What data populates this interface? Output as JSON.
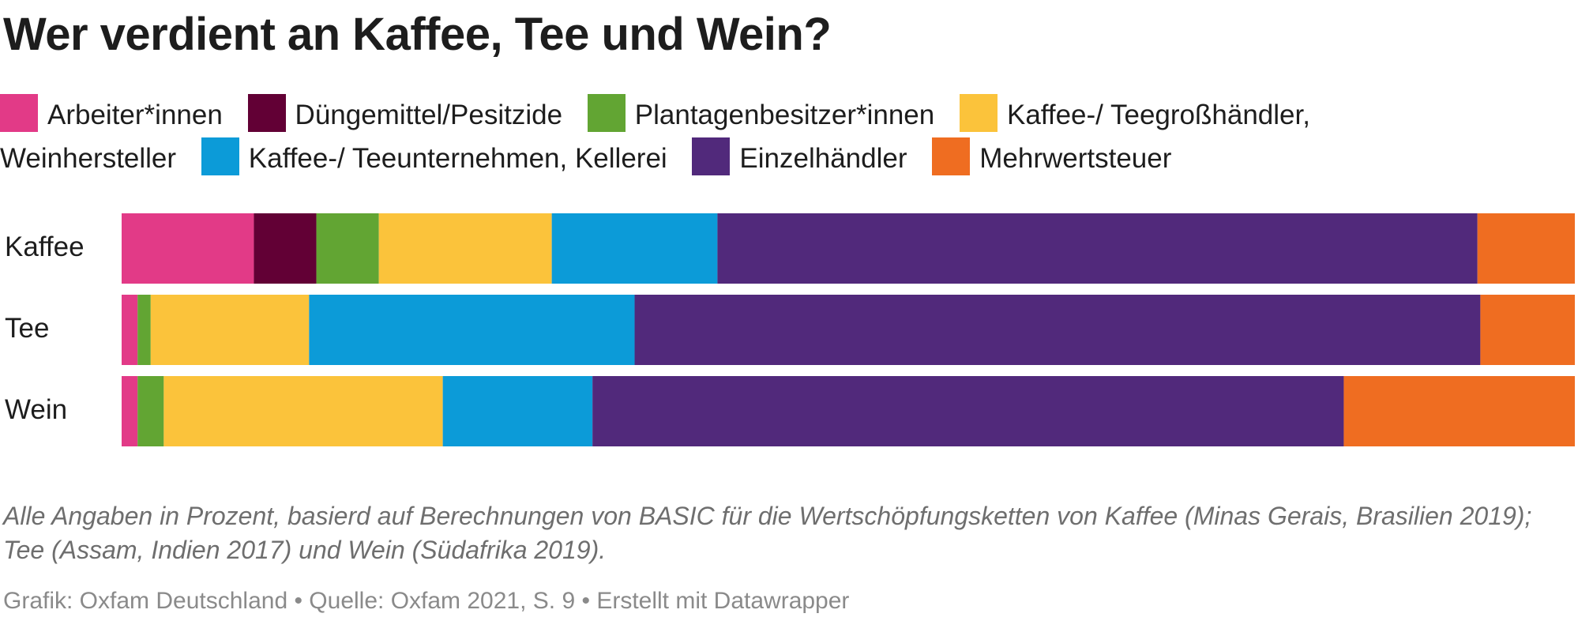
{
  "chart_data": {
    "type": "bar",
    "orientation": "horizontal",
    "stacked": true,
    "title": "Wer verdient an Kaffee, Tee und Wein?",
    "categories": [
      "Kaffee",
      "Tee",
      "Wein"
    ],
    "xlim": [
      0,
      100
    ],
    "grid": false,
    "legend_position": "top",
    "series": [
      {
        "name": "Arbeiter*innen",
        "color": "#e23a87",
        "values": [
          9.1,
          1.1,
          1.1
        ]
      },
      {
        "name": "Düngemittel/Pesitzide",
        "color": "#620035",
        "values": [
          4.3,
          0,
          0
        ]
      },
      {
        "name": "Plantagenbesitzer*innen",
        "color": "#62a533",
        "values": [
          4.3,
          0.9,
          1.8
        ]
      },
      {
        "name": "Kaffee-/ Teegroßhändler, Weinhersteller",
        "color": "#fbc33b",
        "values": [
          11.9,
          10.9,
          19.2
        ]
      },
      {
        "name": "Kaffee-/ Teeunternehmen, Kellerei",
        "color": "#0c9bd8",
        "values": [
          11.4,
          22.4,
          10.3
        ]
      },
      {
        "name": "Einzelhändler",
        "color": "#51297b",
        "values": [
          52.3,
          58.2,
          51.7
        ]
      },
      {
        "name": "Mehrwertsteuer",
        "color": "#ef6d21",
        "values": [
          6.7,
          6.5,
          15.9
        ]
      }
    ]
  },
  "notes": "Alle Angaben in Prozent, basierd auf Berechnungen von BASIC für die Wertschöpfungsketten von Kaffee (Minas Gerais, Brasilien 2019); Tee (Assam, Indien 2017) und Wein (Südafrika 2019).",
  "credit": "Grafik: Oxfam Deutschland • Quelle: Oxfam 2021, S. 9 • Erstellt mit Datawrapper"
}
